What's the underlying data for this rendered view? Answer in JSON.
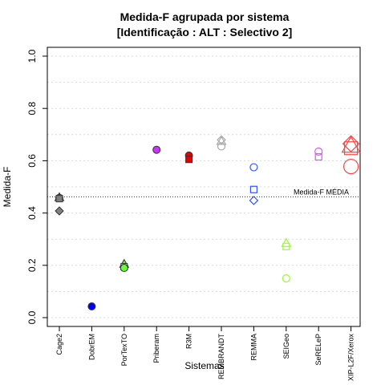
{
  "chart_data": {
    "type": "scatter",
    "title": "Medida-F agrupada por sistema",
    "subtitle": "[Identificação : ALT : Selectivo 2]",
    "xlabel": "Sistemas",
    "ylabel": "Medida-F",
    "ylim": [
      0.0,
      1.0
    ],
    "yticks": [
      "0.0",
      "0.2",
      "0.4",
      "0.6",
      "0.8",
      "1.0"
    ],
    "grid": "horizontal dotted",
    "categories": [
      "Cage2",
      "DobrEM",
      "PorTexTO",
      "Priberam",
      "R3M",
      "REMBRANDT",
      "REMMA",
      "SEIGeo",
      "SeRELeP",
      "XIP-L2F/Xerox"
    ],
    "reference_line": {
      "label": "Medida-F MÉDIA",
      "value": 0.462
    },
    "points": [
      {
        "category": "Cage2",
        "value": 0.46,
        "shape": "triangle",
        "color": "#808080",
        "filled": true
      },
      {
        "category": "Cage2",
        "value": 0.458,
        "shape": "circle",
        "color": "#808080",
        "filled": true
      },
      {
        "category": "Cage2",
        "value": 0.455,
        "shape": "square",
        "color": "#808080",
        "filled": true
      },
      {
        "category": "Cage2",
        "value": 0.408,
        "shape": "diamond",
        "color": "#808080",
        "filled": true
      },
      {
        "category": "DobrEM",
        "value": 0.043,
        "shape": "circle",
        "color": "#0000ff",
        "filled": true
      },
      {
        "category": "PorTexTO",
        "value": 0.205,
        "shape": "triangle",
        "color": "#66ff33",
        "filled": true
      },
      {
        "category": "PorTexTO",
        "value": 0.195,
        "shape": "square",
        "color": "#66ff33",
        "filled": true
      },
      {
        "category": "PorTexTO",
        "value": 0.19,
        "shape": "circle",
        "color": "#66ff33",
        "filled": true
      },
      {
        "category": "Priberam",
        "value": 0.642,
        "shape": "circle",
        "color": "#cc33ff",
        "filled": true
      },
      {
        "category": "R3M",
        "value": 0.62,
        "shape": "circle",
        "color": "#e60000",
        "filled": true
      },
      {
        "category": "R3M",
        "value": 0.605,
        "shape": "square",
        "color": "#e60000",
        "filled": true
      },
      {
        "category": "REMBRANDT",
        "value": 0.68,
        "shape": "diamond",
        "color": "#aaaaaa",
        "filled": false
      },
      {
        "category": "REMBRANDT",
        "value": 0.675,
        "shape": "triangle",
        "color": "#aaaaaa",
        "filled": false
      },
      {
        "category": "REMBRANDT",
        "value": 0.655,
        "shape": "circle",
        "color": "#aaaaaa",
        "filled": false
      },
      {
        "category": "REMMA",
        "value": 0.575,
        "shape": "circle",
        "color": "#3355ff",
        "filled": false
      },
      {
        "category": "REMMA",
        "value": 0.49,
        "shape": "square",
        "color": "#3355ff",
        "filled": false
      },
      {
        "category": "REMMA",
        "value": 0.448,
        "shape": "diamond",
        "color": "#3355ff",
        "filled": false
      },
      {
        "category": "SEIGeo",
        "value": 0.285,
        "shape": "triangle",
        "color": "#99ff33",
        "filled": false
      },
      {
        "category": "SEIGeo",
        "value": 0.272,
        "shape": "square",
        "color": "#99ff33",
        "filled": false
      },
      {
        "category": "SEIGeo",
        "value": 0.15,
        "shape": "circle",
        "color": "#99ff33",
        "filled": false
      },
      {
        "category": "SeRELeP",
        "value": 0.635,
        "shape": "circle",
        "color": "#dd55ff",
        "filled": false
      },
      {
        "category": "SeRELeP",
        "value": 0.615,
        "shape": "square",
        "color": "#dd55ff",
        "filled": false
      },
      {
        "category": "XIP-L2F/Xerox",
        "value": 0.665,
        "shape": "diamond-large",
        "color": "#ff4444",
        "filled": false
      },
      {
        "category": "XIP-L2F/Xerox",
        "value": 0.658,
        "shape": "triangle-large",
        "color": "#ff4444",
        "filled": false
      },
      {
        "category": "XIP-L2F/Xerox",
        "value": 0.648,
        "shape": "square-large",
        "color": "#ff4444",
        "filled": false
      },
      {
        "category": "XIP-L2F/Xerox",
        "value": 0.578,
        "shape": "circle-large",
        "color": "#ff4444",
        "filled": false
      }
    ]
  }
}
